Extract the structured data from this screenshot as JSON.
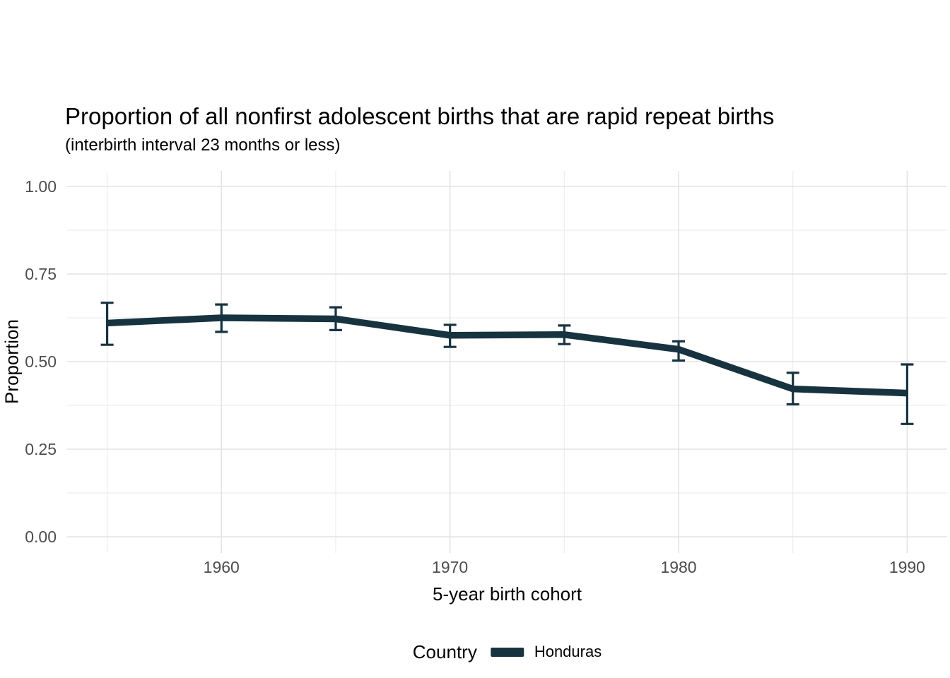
{
  "chart_data": {
    "type": "line",
    "title": "Proportion of all nonfirst adolescent births that are rapid repeat births",
    "subtitle": "(interbirth interval 23 months or less)",
    "xlabel": "5-year birth cohort",
    "ylabel": "Proportion",
    "x": [
      1955,
      1960,
      1965,
      1970,
      1975,
      1980,
      1985,
      1990
    ],
    "series": [
      {
        "name": "Honduras",
        "values": [
          0.61,
          0.625,
          0.622,
          0.575,
          0.577,
          0.535,
          0.422,
          0.41
        ],
        "ci_low": [
          0.548,
          0.585,
          0.59,
          0.542,
          0.55,
          0.503,
          0.378,
          0.322
        ],
        "ci_high": [
          0.668,
          0.663,
          0.655,
          0.605,
          0.603,
          0.558,
          0.468,
          0.492
        ],
        "color": "#17333f"
      }
    ],
    "xlim": [
      1953.25,
      1991.75
    ],
    "ylim": [
      0,
      1
    ],
    "x_ticks": [
      1960,
      1970,
      1980,
      1990
    ],
    "x_tick_labels": [
      "1960",
      "1970",
      "1980",
      "1990"
    ],
    "x_minor_ticks": [
      1955,
      1965,
      1975,
      1985
    ],
    "y_ticks": [
      0.0,
      0.25,
      0.5,
      0.75,
      1.0
    ],
    "y_tick_labels": [
      "0.00",
      "0.25",
      "0.50",
      "0.75",
      "1.00"
    ],
    "y_minor_ticks": [
      0.125,
      0.375,
      0.625,
      0.875
    ],
    "grid": true,
    "grid_major_color": "#e3e3e3",
    "grid_minor_color": "#ededed",
    "tick_label_color": "#4d4d4d",
    "legend": {
      "title": "Country",
      "position": "bottom",
      "items": [
        {
          "label": "Honduras",
          "color": "#17333f"
        }
      ]
    }
  }
}
